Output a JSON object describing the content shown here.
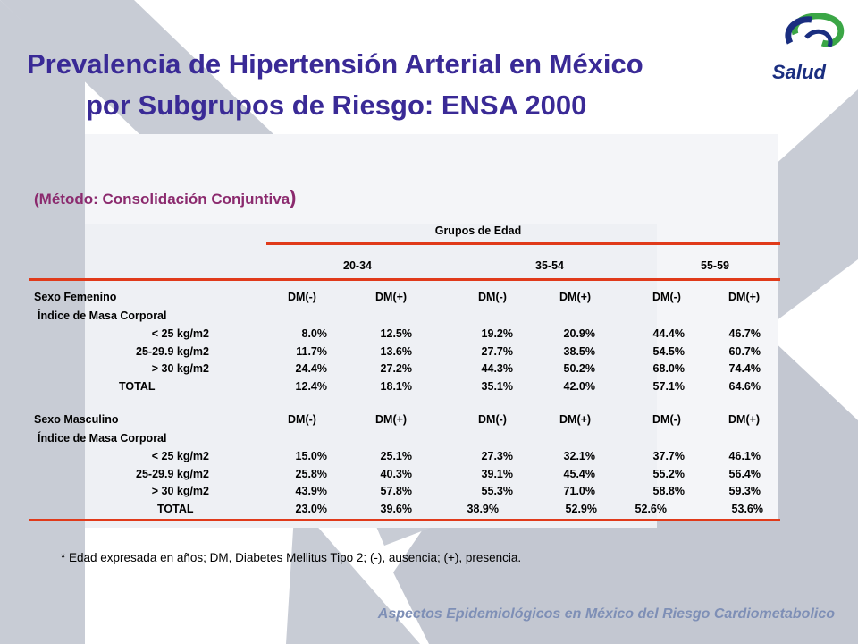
{
  "title": {
    "line1": "Prevalencia de Hipertensión Arterial en México",
    "line2": "por Subgrupos de Riesgo: ENSA 2000"
  },
  "logo": {
    "text": "Salud",
    "icon": "salud-swirl-logo"
  },
  "subtitle": {
    "text": "(Método: Consolidación Conjuntiva",
    "close": ")"
  },
  "table": {
    "group_header": "Grupos de Edad",
    "age_groups": [
      "20-34",
      "35-54",
      "55-59"
    ],
    "dm_labels": [
      "DM(-)",
      "DM(+)",
      "DM(-)",
      "DM(+)",
      "DM(-)",
      "DM(+)"
    ],
    "sections": [
      {
        "label": "Sexo Femenino",
        "sublabel": "Índice de Masa Corporal",
        "rows": [
          {
            "label": "< 25 kg/m2",
            "values": [
              "8.0%",
              "12.5%",
              "19.2%",
              "20.9%",
              "44.4%",
              "46.7%"
            ]
          },
          {
            "label": "25-29.9 kg/m2",
            "values": [
              "11.7%",
              "13.6%",
              "27.7%",
              "38.5%",
              "54.5%",
              "60.7%"
            ]
          },
          {
            "label": "> 30  kg/m2",
            "values": [
              "24.4%",
              "27.2%",
              "44.3%",
              "50.2%",
              "68.0%",
              "74.4%"
            ]
          },
          {
            "label": "TOTAL",
            "values": [
              "12.4%",
              "18.1%",
              "35.1%",
              "42.0%",
              "57.1%",
              "64.6%"
            ]
          }
        ]
      },
      {
        "label": "Sexo Masculino",
        "sublabel": "Índice de Masa Corporal",
        "rows": [
          {
            "label": "< 25 kg/m2",
            "values": [
              "15.0%",
              "25.1%",
              "27.3%",
              "32.1%",
              "37.7%",
              "46.1%"
            ]
          },
          {
            "label": "25-29.9 kg/m2",
            "values": [
              "25.8%",
              "40.3%",
              "39.1%",
              "45.4%",
              "55.2%",
              "56.4%"
            ]
          },
          {
            "label": "> 30  kg/m2",
            "values": [
              "43.9%",
              "57.8%",
              "55.3%",
              "71.0%",
              "58.8%",
              "59.3%"
            ]
          },
          {
            "label": "TOTAL",
            "values": [
              "23.0%",
              "39.6%",
              "38.9%",
              "52.9%",
              "52.6%",
              "53.6%"
            ]
          }
        ]
      }
    ]
  },
  "footnote": "* Edad expresada en años; DM, Diabetes Mellitus Tipo 2; (-), ausencia; (+), presencia.",
  "footer": "Aspectos Epidemiológicos en México del Riesgo Cardiometabolico",
  "colors": {
    "title": "#3a2a96",
    "subtitle": "#8b2a6e",
    "rule": "#e03a1a",
    "footer": "#7e8fb6",
    "background_shapes": "#c9cdd6"
  }
}
